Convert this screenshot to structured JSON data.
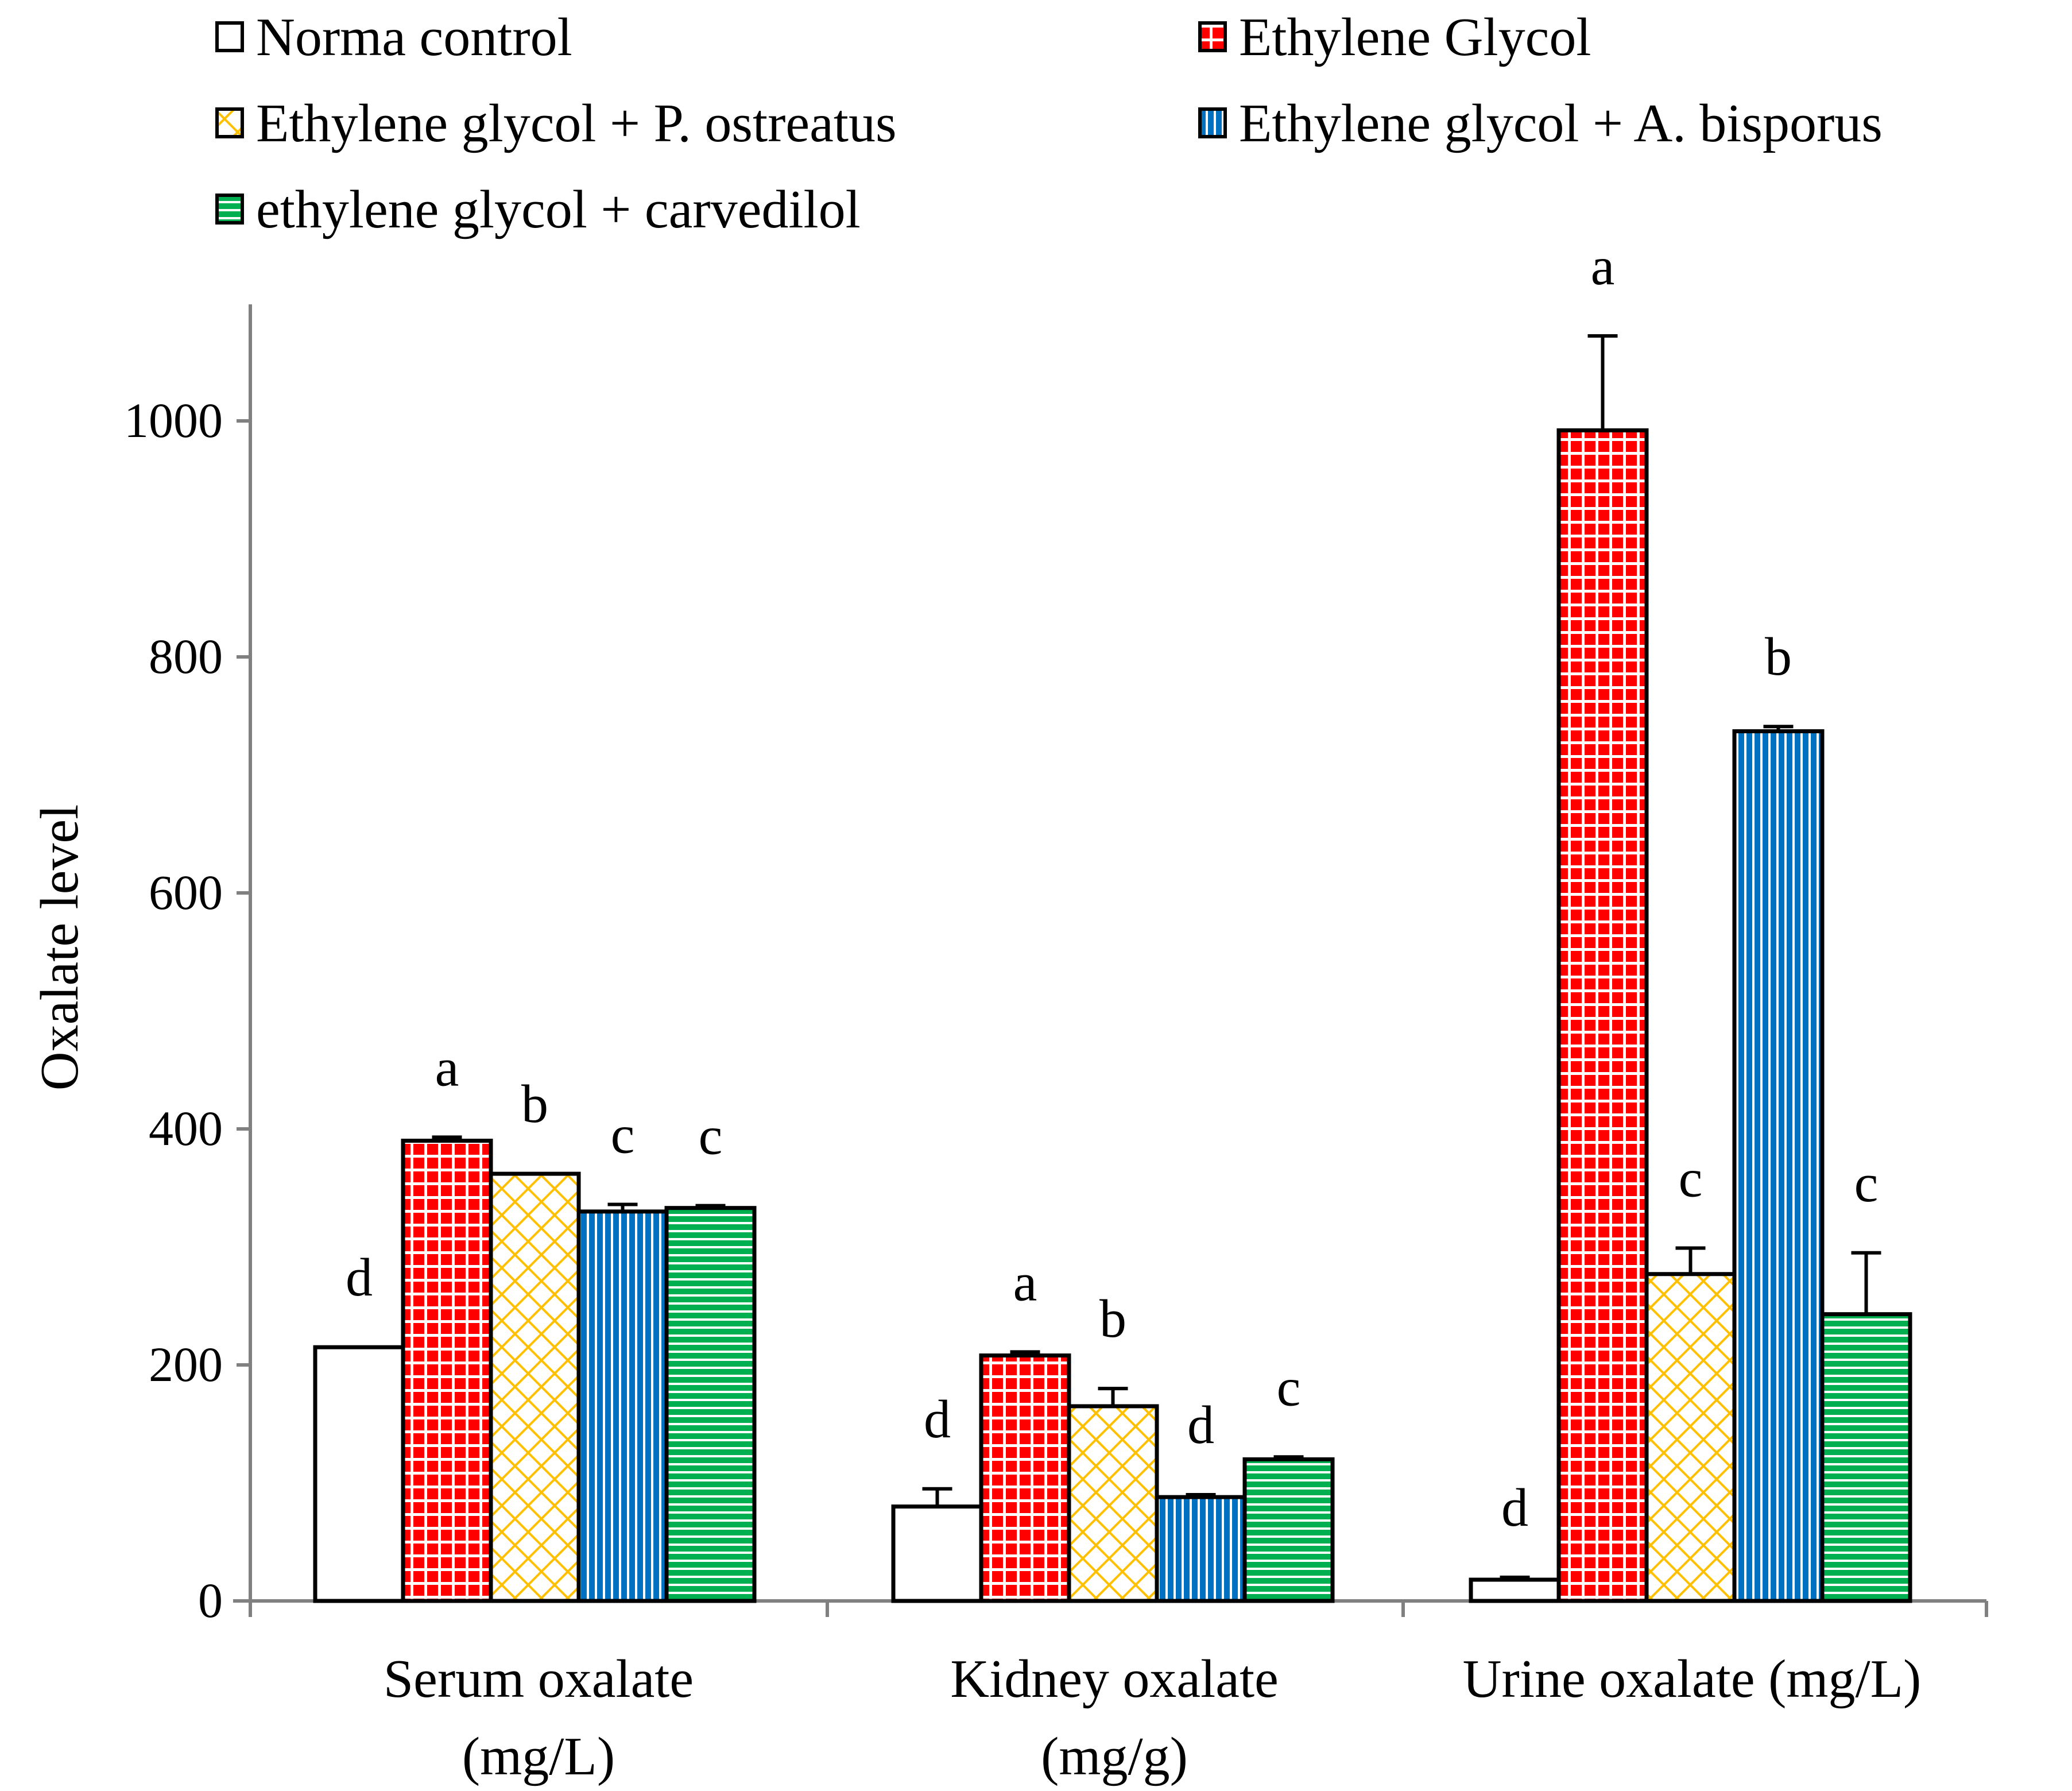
{
  "chart_data": {
    "type": "bar",
    "title": "",
    "xlabel": "",
    "ylabel": "Oxalate level",
    "ylim": [
      0,
      1100
    ],
    "yticks": [
      0,
      200,
      400,
      600,
      800,
      1000
    ],
    "categories": [
      {
        "line1": "Serum oxalate",
        "line2": "(mg/L)"
      },
      {
        "line1": "Kidney oxalate",
        "line2": "(mg/g)"
      },
      {
        "line1": "Urine oxalate (mg/L)",
        "line2": ""
      }
    ],
    "legend_position": "top",
    "series": [
      {
        "name": "Norma control",
        "pattern": "none",
        "color": "#ffffff",
        "values": [
          215,
          80,
          18
        ],
        "errors": [
          0,
          15,
          2
        ],
        "labels": [
          "d",
          "d",
          "d"
        ]
      },
      {
        "name": "Ethylene Glycol",
        "pattern": "grid",
        "color": "#ff0000",
        "values": [
          390,
          208,
          992
        ],
        "errors": [
          3,
          3,
          80
        ],
        "labels": [
          "a",
          "a",
          "a"
        ]
      },
      {
        "name": "Ethylene glycol + P. ostreatus",
        "pattern": "diamond",
        "color": "#ffc000",
        "values": [
          362,
          165,
          277
        ],
        "errors": [
          0,
          15,
          22
        ],
        "labels": [
          "b",
          "b",
          "c"
        ]
      },
      {
        "name": "Ethylene glycol + A. bisporus",
        "pattern": "vertical",
        "color": "#0070c0",
        "values": [
          330,
          88,
          737
        ],
        "errors": [
          6,
          2,
          4
        ],
        "labels": [
          "c",
          "d",
          "b"
        ]
      },
      {
        "name": "ethylene glycol + carvedilol",
        "pattern": "horizontal",
        "color": "#00b050",
        "values": [
          333,
          120,
          243
        ],
        "errors": [
          2,
          2,
          52
        ],
        "labels": [
          "c",
          "c",
          "c"
        ]
      }
    ]
  }
}
